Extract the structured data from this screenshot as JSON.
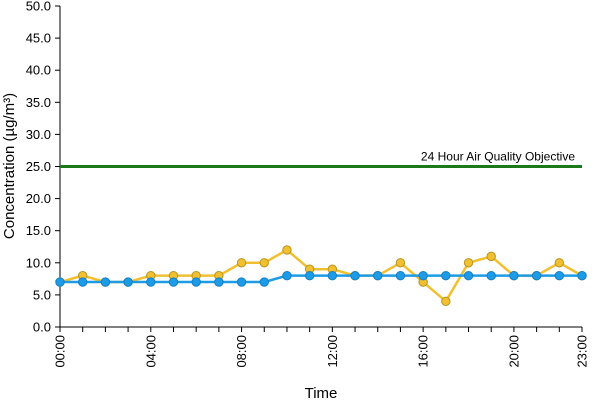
{
  "chart_data": {
    "type": "line",
    "xlabel": "Time",
    "ylabel": "Concentration (µg/m³)",
    "ylim": [
      0,
      50
    ],
    "y_ticks": [
      "0.0",
      "5.0",
      "10.0",
      "15.0",
      "20.0",
      "25.0",
      "30.0",
      "35.0",
      "40.0",
      "45.0",
      "50.0"
    ],
    "x": [
      "00:00",
      "01:00",
      "02:00",
      "03:00",
      "04:00",
      "05:00",
      "06:00",
      "07:00",
      "08:00",
      "09:00",
      "10:00",
      "11:00",
      "12:00",
      "13:00",
      "14:00",
      "15:00",
      "16:00",
      "17:00",
      "18:00",
      "19:00",
      "20:00",
      "21:00",
      "22:00",
      "23:00"
    ],
    "x_tick_labels": [
      "00:00",
      "04:00",
      "08:00",
      "12:00",
      "16:00",
      "20:00",
      "23:00"
    ],
    "grid": false,
    "series": [
      {
        "color": "#f0c030",
        "values": [
          7,
          8,
          7,
          7,
          8,
          8,
          8,
          8,
          10,
          10,
          12,
          9,
          9,
          8,
          8,
          10,
          7,
          4,
          10,
          11,
          8,
          8,
          10,
          8
        ]
      },
      {
        "color": "#1e9be6",
        "values": [
          7,
          7,
          7,
          7,
          7,
          7,
          7,
          7,
          7,
          7,
          8,
          8,
          8,
          8,
          8,
          8,
          8,
          8,
          8,
          8,
          8,
          8,
          8,
          8
        ]
      }
    ],
    "reference_lines": [
      {
        "label": "24 Hour Air Quality Objective",
        "value": 25,
        "color": "#1a7a1a"
      }
    ]
  }
}
